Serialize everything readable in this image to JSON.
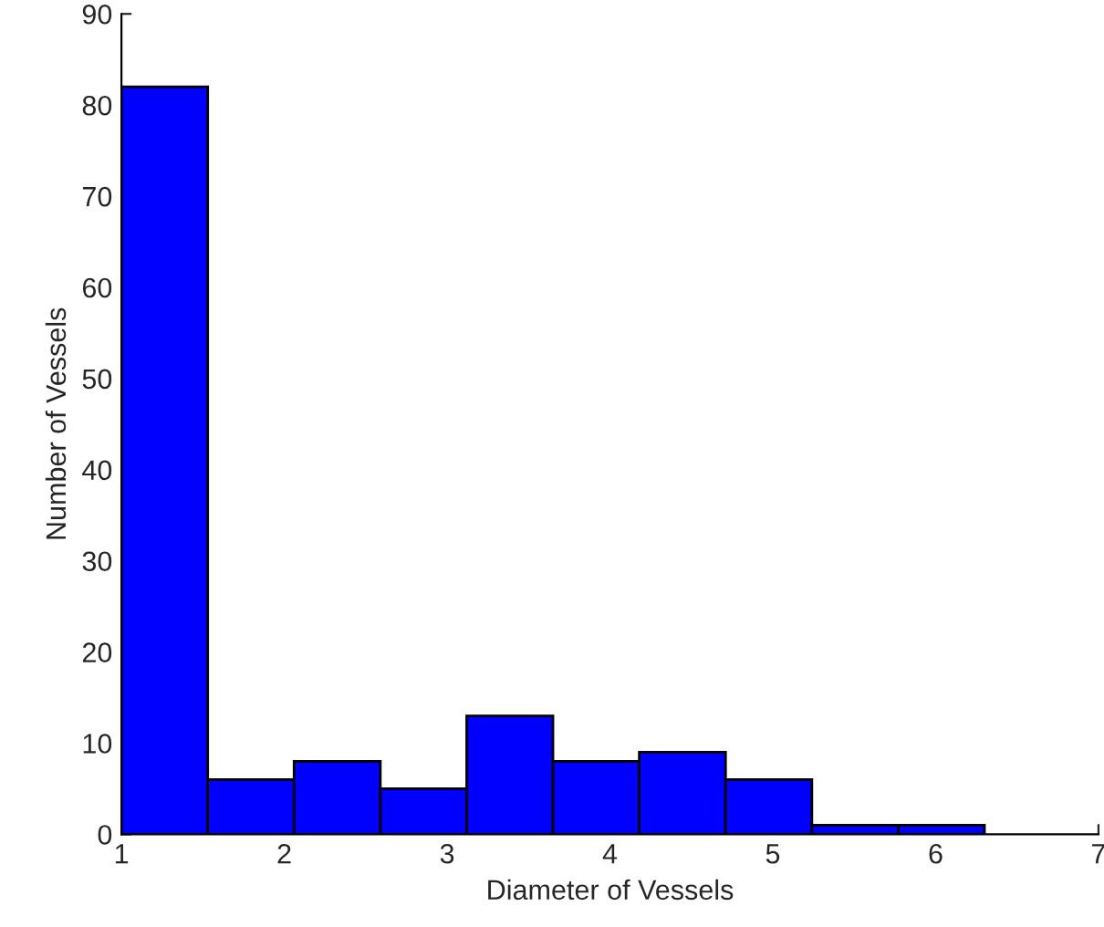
{
  "chart_data": {
    "type": "histogram",
    "xlabel": "Diameter of Vessels",
    "ylabel": "Number of Vessels",
    "bins": [
      1,
      1.53,
      2.06,
      2.59,
      3.12,
      3.65,
      4.18,
      4.71,
      5.24,
      5.77,
      6.3
    ],
    "values": [
      82,
      6,
      8,
      5,
      13,
      8,
      9,
      6,
      1,
      1
    ],
    "color": "#0000ff",
    "xlim": [
      1,
      7
    ],
    "xticks": [
      1,
      2,
      3,
      4,
      5,
      6,
      7
    ],
    "ylim": [
      0,
      90
    ],
    "yticks": [
      0,
      10,
      20,
      30,
      40,
      50,
      60,
      70,
      80,
      90
    ],
    "grid": false
  }
}
